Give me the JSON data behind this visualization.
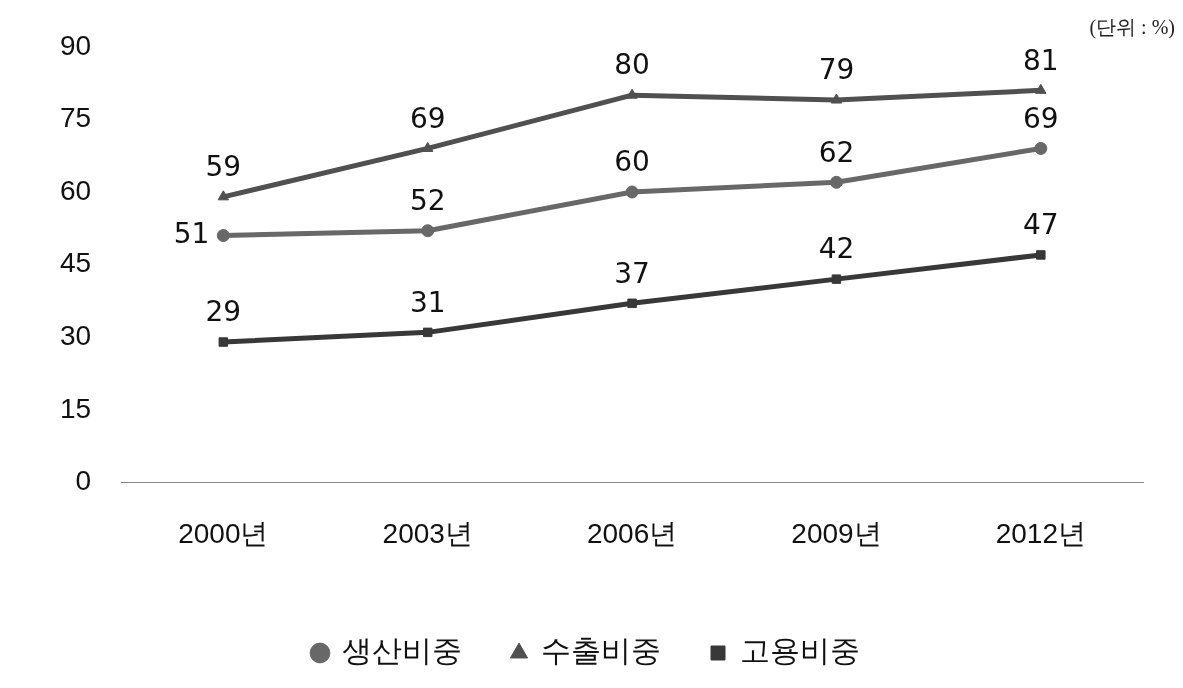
{
  "chart_data": {
    "type": "line",
    "annotations": [
      "(단위 : %)"
    ],
    "categories": [
      "2000년",
      "2003년",
      "2006년",
      "2009년",
      "2012년"
    ],
    "series": [
      {
        "name": "생산비중",
        "color": "#686868",
        "marker": "circle",
        "values": [
          51,
          52,
          60,
          62,
          69
        ]
      },
      {
        "name": "수출비중",
        "color": "#505050",
        "marker": "triangle",
        "values": [
          59,
          69,
          80,
          79,
          81
        ]
      },
      {
        "name": "고용비중",
        "color": "#383838",
        "marker": "square",
        "values": [
          29,
          31,
          37,
          42,
          47
        ]
      }
    ],
    "ylim": [
      0,
      90
    ],
    "yticks": [
      0,
      15,
      30,
      45,
      60,
      75,
      90
    ],
    "data_labels": true,
    "grid": false,
    "legend": "bottom",
    "line_style": "solid"
  }
}
